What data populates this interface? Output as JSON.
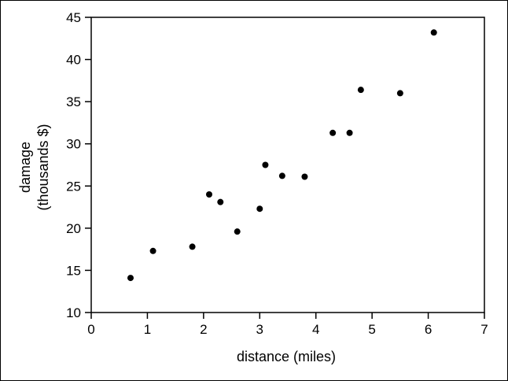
{
  "chart_data": {
    "type": "scatter",
    "xlabel": "distance (miles)",
    "ylabel": [
      "damage",
      "(thousands $)"
    ],
    "xlim": [
      0,
      7
    ],
    "ylim": [
      10,
      45
    ],
    "xticks": [
      0,
      1,
      2,
      3,
      4,
      5,
      6,
      7
    ],
    "yticks": [
      10,
      15,
      20,
      25,
      30,
      35,
      40,
      45
    ],
    "grid": false,
    "legend": "none",
    "marker_color": "#000000",
    "points": [
      {
        "x": 0.7,
        "y": 14.1
      },
      {
        "x": 1.1,
        "y": 17.3
      },
      {
        "x": 1.8,
        "y": 17.8
      },
      {
        "x": 2.1,
        "y": 24.0
      },
      {
        "x": 2.3,
        "y": 23.1
      },
      {
        "x": 2.6,
        "y": 19.6
      },
      {
        "x": 3.0,
        "y": 22.3
      },
      {
        "x": 3.1,
        "y": 27.5
      },
      {
        "x": 3.4,
        "y": 26.2
      },
      {
        "x": 3.8,
        "y": 26.1
      },
      {
        "x": 4.3,
        "y": 31.3
      },
      {
        "x": 4.6,
        "y": 31.3
      },
      {
        "x": 4.8,
        "y": 36.4
      },
      {
        "x": 5.5,
        "y": 36.0
      },
      {
        "x": 6.1,
        "y": 43.2
      }
    ]
  }
}
